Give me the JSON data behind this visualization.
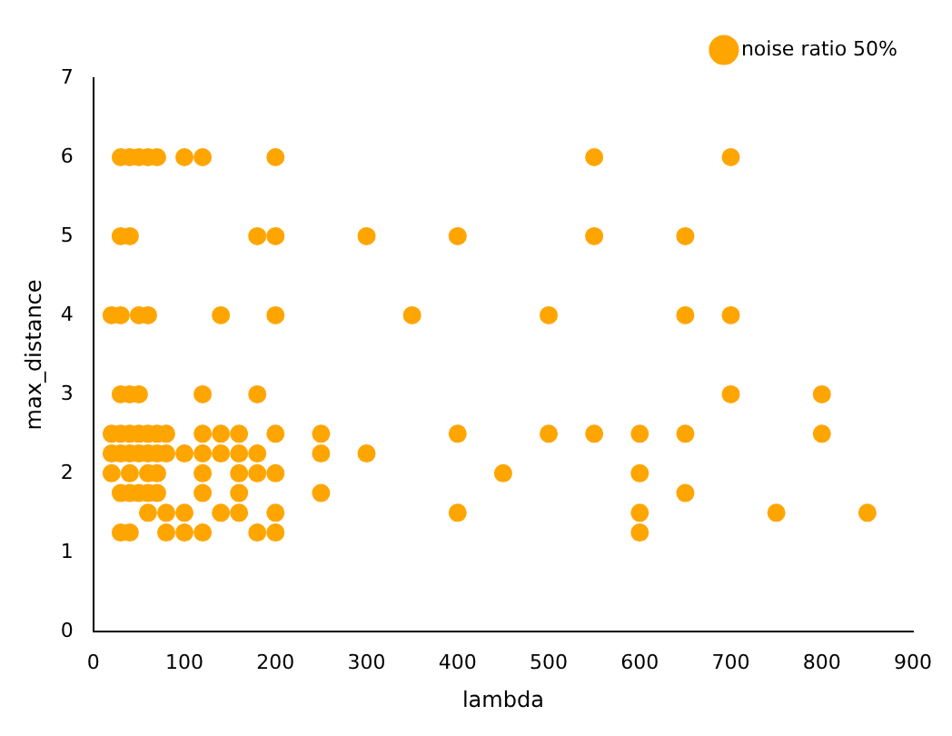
{
  "chart_data": {
    "type": "scatter",
    "xlabel": "lambda",
    "ylabel": "max_distance",
    "xlim": [
      0,
      900
    ],
    "xticks": [
      0,
      100,
      200,
      300,
      400,
      500,
      600,
      700,
      800,
      900
    ],
    "ylim": [
      0,
      7
    ],
    "yticks": [
      0,
      1,
      2,
      3,
      4,
      5,
      6,
      7
    ],
    "grid": false,
    "legend": "top right",
    "marker": "circle",
    "series": [
      {
        "name": "noise ratio 50%",
        "color": "#ffa500",
        "x": [
          30,
          40,
          50,
          60,
          70,
          100,
          120,
          200,
          550,
          700,
          30,
          40,
          180,
          200,
          300,
          400,
          550,
          650,
          20,
          30,
          50,
          60,
          140,
          200,
          350,
          500,
          650,
          700,
          30,
          40,
          50,
          120,
          180,
          700,
          800,
          20,
          30,
          40,
          50,
          60,
          70,
          80,
          120,
          140,
          160,
          200,
          250,
          400,
          500,
          550,
          600,
          650,
          800,
          20,
          30,
          40,
          50,
          60,
          70,
          80,
          100,
          120,
          140,
          160,
          180,
          250,
          300,
          20,
          40,
          60,
          70,
          120,
          160,
          180,
          200,
          450,
          600,
          30,
          40,
          50,
          60,
          70,
          120,
          160,
          250,
          650,
          60,
          80,
          100,
          140,
          160,
          200,
          400,
          600,
          750,
          850,
          30,
          40,
          80,
          100,
          120,
          180,
          200,
          600
        ],
        "values": [
          6,
          6,
          6,
          6,
          6,
          6,
          6,
          6,
          6,
          6,
          5,
          5,
          5,
          5,
          5,
          5,
          5,
          5,
          4,
          4,
          4,
          4,
          4,
          4,
          4,
          4,
          4,
          4,
          3,
          3,
          3,
          3,
          3,
          3,
          3,
          2.5,
          2.5,
          2.5,
          2.5,
          2.5,
          2.5,
          2.5,
          2.5,
          2.5,
          2.5,
          2.5,
          2.5,
          2.5,
          2.5,
          2.5,
          2.5,
          2.5,
          2.5,
          2.25,
          2.25,
          2.25,
          2.25,
          2.25,
          2.25,
          2.25,
          2.25,
          2.25,
          2.25,
          2.25,
          2.25,
          2.25,
          2.25,
          2,
          2,
          2,
          2,
          2,
          2,
          2,
          2,
          2,
          2,
          1.75,
          1.75,
          1.75,
          1.75,
          1.75,
          1.75,
          1.75,
          1.75,
          1.75,
          1.5,
          1.5,
          1.5,
          1.5,
          1.5,
          1.5,
          1.5,
          1.5,
          1.5,
          1.5,
          1.25,
          1.25,
          1.25,
          1.25,
          1.25,
          1.25,
          1.25,
          1.25
        ]
      }
    ]
  }
}
